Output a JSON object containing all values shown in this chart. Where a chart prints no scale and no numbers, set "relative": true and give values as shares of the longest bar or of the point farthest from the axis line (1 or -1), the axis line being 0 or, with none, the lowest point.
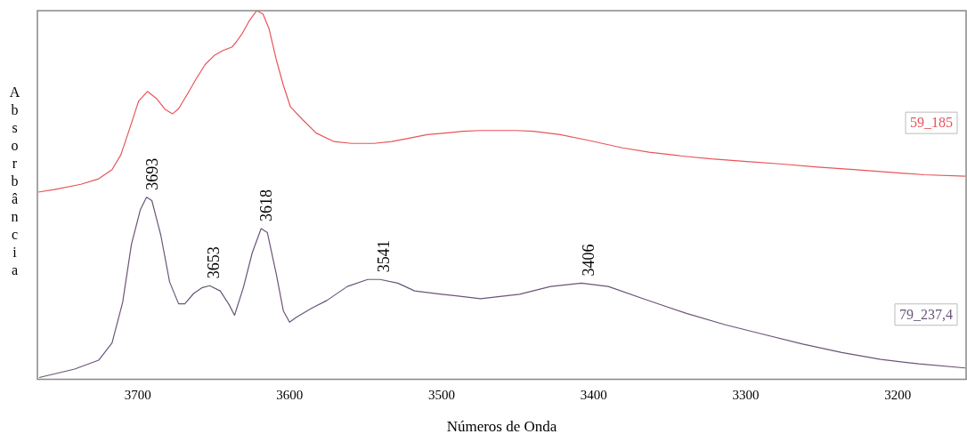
{
  "chart_data": {
    "type": "line",
    "xlabel": "Números de Onda",
    "ylabel": "Absorbância",
    "relative": true,
    "xlim": [
      3766,
      3155
    ],
    "xticks": [
      3700,
      3600,
      3500,
      3400,
      3300,
      3200
    ],
    "grid": false,
    "legend": false,
    "marker": "none",
    "line_style": "solid",
    "series": [
      {
        "name": "59_185",
        "color": "#e8545a",
        "x": [
          3765.4,
          3754.9,
          3737.4,
          3725.7,
          3716.9,
          3711.1,
          3705.3,
          3699.4,
          3693.6,
          3687.7,
          3681.9,
          3677.2,
          3673.1,
          3667.3,
          3661.4,
          3655.6,
          3649.8,
          3643.9,
          3638.1,
          3635.2,
          3631.1,
          3626.4,
          3621.7,
          3617.6,
          3613.6,
          3608.9,
          3604.2,
          3599.5,
          3591.4,
          3582.6,
          3570.9,
          3559.2,
          3544.6,
          3532.9,
          3521.3,
          3509.6,
          3497.9,
          3486.2,
          3474.5,
          3462.9,
          3451.2,
          3439.5,
          3422.0,
          3404.4,
          3381.1,
          3363.6,
          3340.2,
          3322.7,
          3299.3,
          3275.9,
          3252.6,
          3229.2,
          3205.8,
          3182.5,
          3155.6
        ],
        "values": [
          0.508,
          0.515,
          0.529,
          0.544,
          0.569,
          0.609,
          0.68,
          0.755,
          0.781,
          0.762,
          0.732,
          0.72,
          0.734,
          0.774,
          0.816,
          0.854,
          0.878,
          0.892,
          0.901,
          0.915,
          0.939,
          0.974,
          1,
          0.991,
          0.951,
          0.868,
          0.798,
          0.739,
          0.704,
          0.668,
          0.645,
          0.64,
          0.64,
          0.645,
          0.654,
          0.664,
          0.668,
          0.673,
          0.675,
          0.675,
          0.675,
          0.673,
          0.664,
          0.649,
          0.628,
          0.616,
          0.605,
          0.598,
          0.591,
          0.584,
          0.576,
          0.569,
          0.562,
          0.555,
          0.551
        ]
      },
      {
        "name": "79_237,4",
        "color": "#6a5578",
        "x": [
          3764.8,
          3741.5,
          3725.7,
          3716.9,
          3709.9,
          3704.1,
          3698.2,
          3694.2,
          3690.7,
          3684.8,
          3679.0,
          3673.1,
          3669.0,
          3663.2,
          3657.4,
          3652.7,
          3645.7,
          3639.8,
          3636.3,
          3630.5,
          3624.6,
          3618.8,
          3614.7,
          3608.9,
          3604.2,
          3600.1,
          3595.4,
          3585.5,
          3575.6,
          3562.1,
          3548.7,
          3540.5,
          3528.9,
          3517.8,
          3500.2,
          3474.5,
          3448.8,
          3428.4,
          3408.1,
          3390.4,
          3364.7,
          3339.0,
          3313.3,
          3288.2,
          3262.5,
          3236.8,
          3211.1,
          3186.0,
          3155.6
        ],
        "values": [
          0.005,
          0.028,
          0.052,
          0.099,
          0.209,
          0.367,
          0.461,
          0.494,
          0.485,
          0.391,
          0.264,
          0.205,
          0.205,
          0.233,
          0.249,
          0.254,
          0.24,
          0.202,
          0.174,
          0.249,
          0.344,
          0.409,
          0.398,
          0.287,
          0.186,
          0.155,
          0.169,
          0.193,
          0.214,
          0.252,
          0.271,
          0.271,
          0.261,
          0.24,
          0.231,
          0.219,
          0.231,
          0.252,
          0.261,
          0.252,
          0.215,
          0.179,
          0.148,
          0.122,
          0.096,
          0.073,
          0.054,
          0.042,
          0.031
        ]
      }
    ],
    "annotations": [
      {
        "text": "3693",
        "x": 3693,
        "y": 0.494
      },
      {
        "text": "3653",
        "x": 3653,
        "y": 0.254
      },
      {
        "text": "3618",
        "x": 3618,
        "y": 0.409
      },
      {
        "text": "3541",
        "x": 3541,
        "y": 0.271
      },
      {
        "text": "3406",
        "x": 3406,
        "y": 0.261
      }
    ]
  }
}
